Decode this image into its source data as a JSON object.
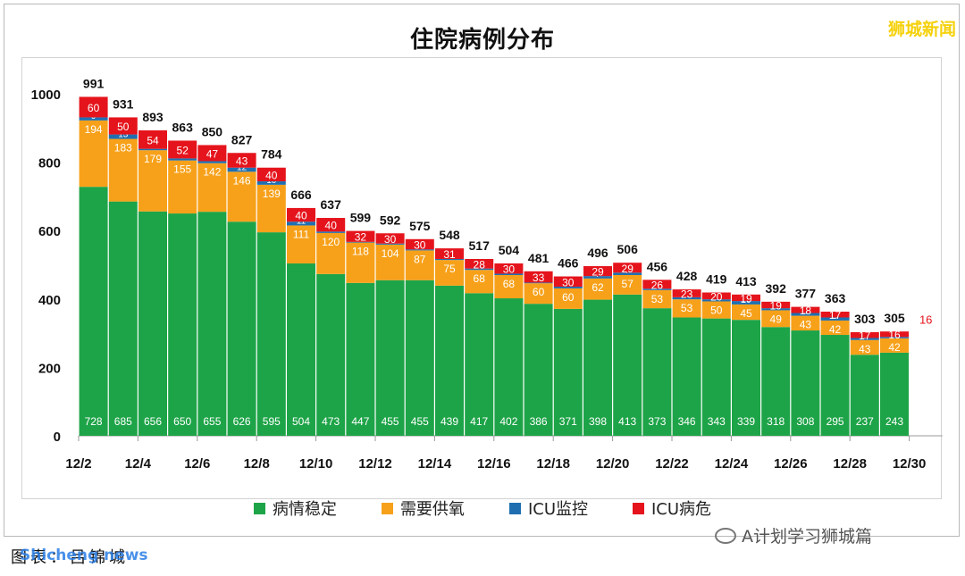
{
  "brand": "狮城新闻",
  "footer": "图表：吕锦城",
  "footer_credit": "Shicheng news",
  "watermark": "A计划学习狮城篇",
  "colors": {
    "stable": "#1ea448",
    "oxygen": "#f7a11a",
    "icu_monitor": "#1f6fb0",
    "icu_critical": "#e5141c"
  },
  "chart_data": {
    "type": "bar",
    "stacked": true,
    "title": "住院病例分布",
    "categories": [
      "12/2",
      "12/3",
      "12/4",
      "12/5",
      "12/6",
      "12/7",
      "12/8",
      "12/9",
      "12/10",
      "12/11",
      "12/12",
      "12/13",
      "12/14",
      "12/15",
      "12/16",
      "12/17",
      "12/18",
      "12/19",
      "12/20",
      "12/21",
      "12/22",
      "12/23",
      "12/24",
      "12/25",
      "12/26",
      "12/27",
      "12/28",
      "12/29",
      "12/30"
    ],
    "x_tick_labels": [
      "12/2",
      "12/4",
      "12/6",
      "12/8",
      "12/10",
      "12/12",
      "12/14",
      "12/16",
      "12/18",
      "12/20",
      "12/22",
      "12/24",
      "12/26",
      "12/28",
      "12/30"
    ],
    "y_ticks": [
      0,
      200,
      400,
      600,
      800,
      1000
    ],
    "ylim": [
      0,
      1000
    ],
    "legend_position": "bottom",
    "series": [
      {
        "name": "病情稳定",
        "values": [
          728,
          685,
          656,
          650,
          655,
          626,
          595,
          504,
          473,
          447,
          455,
          455,
          439,
          417,
          402,
          386,
          371,
          398,
          413,
          373,
          346,
          343,
          339,
          318,
          308,
          295,
          237,
          243,
          null
        ]
      },
      {
        "name": "需要供氧",
        "values": [
          194,
          183,
          179,
          155,
          142,
          146,
          139,
          111,
          120,
          118,
          104,
          87,
          75,
          68,
          68,
          60,
          60,
          62,
          57,
          53,
          53,
          50,
          45,
          49,
          43,
          42,
          43,
          42,
          null
        ]
      },
      {
        "name": "ICU监控",
        "values": [
          9,
          13,
          4,
          6,
          6,
          12,
          10,
          11,
          4,
          2,
          3,
          3,
          3,
          4,
          4,
          2,
          5,
          7,
          7,
          4,
          6,
          6,
          10,
          6,
          8,
          9,
          6,
          4,
          null
        ]
      },
      {
        "name": "ICU病危",
        "values": [
          60,
          50,
          54,
          52,
          47,
          43,
          40,
          40,
          40,
          32,
          30,
          30,
          31,
          28,
          30,
          33,
          30,
          29,
          29,
          26,
          23,
          20,
          19,
          19,
          18,
          17,
          17,
          16,
          null
        ]
      }
    ],
    "totals": [
      991,
      931,
      893,
      863,
      850,
      827,
      784,
      666,
      637,
      599,
      592,
      575,
      548,
      517,
      504,
      481,
      466,
      496,
      506,
      456,
      428,
      419,
      413,
      392,
      377,
      363,
      303,
      305,
      null
    ],
    "annotations": [
      "16"
    ],
    "grid": false
  }
}
